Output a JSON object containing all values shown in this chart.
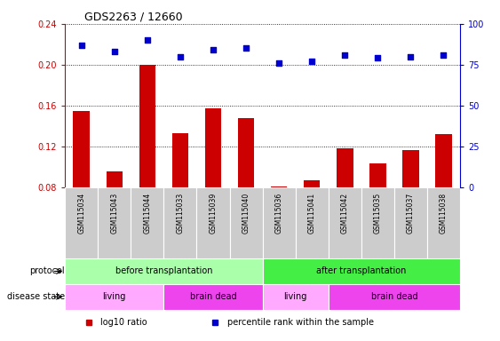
{
  "title": "GDS2263 / 12660",
  "samples": [
    "GSM115034",
    "GSM115043",
    "GSM115044",
    "GSM115033",
    "GSM115039",
    "GSM115040",
    "GSM115036",
    "GSM115041",
    "GSM115042",
    "GSM115035",
    "GSM115037",
    "GSM115038"
  ],
  "log10_ratio": [
    0.155,
    0.095,
    0.2,
    0.133,
    0.157,
    0.148,
    0.081,
    0.087,
    0.118,
    0.103,
    0.116,
    0.132
  ],
  "percentile_rank": [
    87,
    83,
    90,
    80,
    84,
    85,
    76,
    77,
    81,
    79,
    80,
    81
  ],
  "bar_color": "#cc0000",
  "dot_color": "#0000cc",
  "ylim_left": [
    0.08,
    0.24
  ],
  "ylim_right": [
    0,
    100
  ],
  "yticks_left": [
    0.08,
    0.12,
    0.16,
    0.2,
    0.24
  ],
  "yticks_right": [
    0,
    25,
    50,
    75,
    100
  ],
  "ybase": 0.08,
  "protocol_labels": [
    {
      "text": "before transplantation",
      "start": 0,
      "end": 6,
      "color": "#aaffaa"
    },
    {
      "text": "after transplantation",
      "start": 6,
      "end": 12,
      "color": "#44ee44"
    }
  ],
  "disease_labels": [
    {
      "text": "living",
      "start": 0,
      "end": 3,
      "color": "#ffaaff"
    },
    {
      "text": "brain dead",
      "start": 3,
      "end": 6,
      "color": "#ee44ee"
    },
    {
      "text": "living",
      "start": 6,
      "end": 8,
      "color": "#ffaaff"
    },
    {
      "text": "brain dead",
      "start": 8,
      "end": 12,
      "color": "#ee44ee"
    }
  ],
  "protocol_row_label": "protocol",
  "disease_row_label": "disease state",
  "legend_items": [
    {
      "label": "log10 ratio",
      "color": "#cc0000"
    },
    {
      "label": "percentile rank within the sample",
      "color": "#0000cc"
    }
  ],
  "background_color": "#ffffff",
  "sample_bg_color": "#cccccc"
}
